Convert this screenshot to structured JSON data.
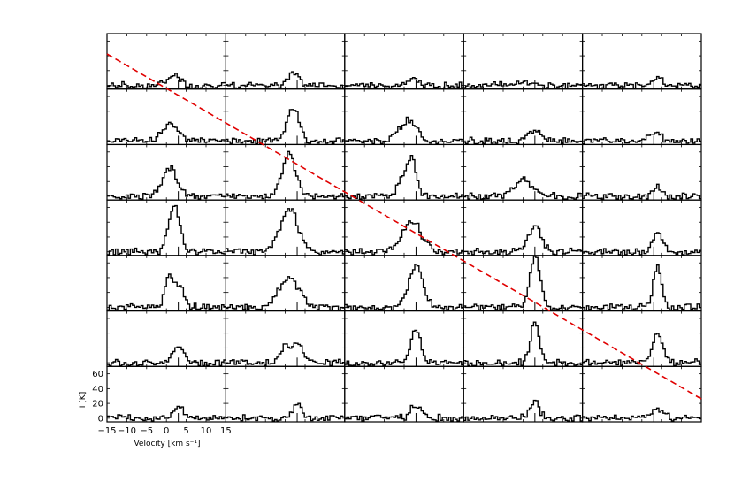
{
  "chart_data": {
    "type": "line",
    "layout": "grid of spectra",
    "rows": 7,
    "cols": 5,
    "xlabel": "Velocity [km s⁻¹]",
    "ylabel": "I [K]",
    "xlim": [
      -15,
      15
    ],
    "ylim": [
      -5,
      70
    ],
    "x_ticks": [
      -15,
      -10,
      -5,
      0,
      5,
      10,
      15
    ],
    "y_ticks": [
      0,
      20,
      40,
      60
    ],
    "colors": {
      "spectrum": "#000000",
      "guide_line": "#e00000"
    },
    "guide_line": {
      "style": "dashed",
      "from": "top-left",
      "to": "bottom-right"
    },
    "line_marker_velocity": 3,
    "panels": [
      {
        "row": 0,
        "col": 0,
        "peaks": [
          {
            "v": 2,
            "a": 14,
            "w": 1.6
          }
        ]
      },
      {
        "row": 0,
        "col": 1,
        "peaks": [
          {
            "v": 2,
            "a": 14,
            "w": 1.4
          }
        ]
      },
      {
        "row": 0,
        "col": 2,
        "peaks": [
          {
            "v": 2,
            "a": 8,
            "w": 1.5
          }
        ]
      },
      {
        "row": 0,
        "col": 3,
        "peaks": [
          {
            "v": 0,
            "a": 6,
            "w": 1.8
          }
        ]
      },
      {
        "row": 0,
        "col": 4,
        "peaks": [
          {
            "v": 4,
            "a": 12,
            "w": 1.0
          }
        ]
      },
      {
        "row": 1,
        "col": 0,
        "peaks": [
          {
            "v": 1,
            "a": 24,
            "w": 2.0
          }
        ]
      },
      {
        "row": 1,
        "col": 1,
        "peaks": [
          {
            "v": 2,
            "a": 46,
            "w": 1.4
          }
        ]
      },
      {
        "row": 1,
        "col": 2,
        "peaks": [
          {
            "v": 1,
            "a": 26,
            "w": 2.2
          }
        ]
      },
      {
        "row": 1,
        "col": 3,
        "peaks": [
          {
            "v": 3,
            "a": 14,
            "w": 1.5
          }
        ]
      },
      {
        "row": 1,
        "col": 4,
        "peaks": [
          {
            "v": 3,
            "a": 10,
            "w": 1.8
          }
        ]
      },
      {
        "row": 2,
        "col": 0,
        "peaks": [
          {
            "v": 1,
            "a": 38,
            "w": 1.8
          }
        ]
      },
      {
        "row": 2,
        "col": 1,
        "peaks": [
          {
            "v": 1,
            "a": 62,
            "w": 1.6
          }
        ]
      },
      {
        "row": 2,
        "col": 2,
        "peaks": [
          {
            "v": 2,
            "a": 42,
            "w": 1.2
          },
          {
            "v": 0,
            "a": 22,
            "w": 1.6
          }
        ]
      },
      {
        "row": 2,
        "col": 3,
        "peaks": [
          {
            "v": 0,
            "a": 22,
            "w": 2.2
          }
        ]
      },
      {
        "row": 2,
        "col": 4,
        "peaks": [
          {
            "v": 4,
            "a": 14,
            "w": 1.0
          }
        ]
      },
      {
        "row": 3,
        "col": 0,
        "peaks": [
          {
            "v": 2,
            "a": 62,
            "w": 1.4
          }
        ]
      },
      {
        "row": 3,
        "col": 1,
        "peaks": [
          {
            "v": 1,
            "a": 58,
            "w": 2.2
          }
        ]
      },
      {
        "row": 3,
        "col": 2,
        "peaks": [
          {
            "v": 2,
            "a": 40,
            "w": 2.4
          }
        ]
      },
      {
        "row": 3,
        "col": 3,
        "peaks": [
          {
            "v": 3,
            "a": 36,
            "w": 1.6
          }
        ]
      },
      {
        "row": 3,
        "col": 4,
        "peaks": [
          {
            "v": 4,
            "a": 24,
            "w": 1.4
          }
        ]
      },
      {
        "row": 4,
        "col": 0,
        "peaks": [
          {
            "v": 0.5,
            "a": 40,
            "w": 1.0
          },
          {
            "v": 3,
            "a": 30,
            "w": 1.2
          }
        ]
      },
      {
        "row": 4,
        "col": 1,
        "peaks": [
          {
            "v": 1,
            "a": 40,
            "w": 2.6
          }
        ]
      },
      {
        "row": 4,
        "col": 2,
        "peaks": [
          {
            "v": 3,
            "a": 54,
            "w": 1.8
          }
        ]
      },
      {
        "row": 4,
        "col": 3,
        "peaks": [
          {
            "v": 3,
            "a": 66,
            "w": 1.3
          }
        ]
      },
      {
        "row": 4,
        "col": 4,
        "peaks": [
          {
            "v": 4,
            "a": 54,
            "w": 1.1
          }
        ]
      },
      {
        "row": 5,
        "col": 0,
        "peaks": [
          {
            "v": 3,
            "a": 20,
            "w": 1.6
          }
        ]
      },
      {
        "row": 5,
        "col": 1,
        "peaks": [
          {
            "v": 0,
            "a": 22,
            "w": 1.0
          },
          {
            "v": 3,
            "a": 28,
            "w": 1.4
          }
        ]
      },
      {
        "row": 5,
        "col": 2,
        "peaks": [
          {
            "v": 3,
            "a": 46,
            "w": 1.2
          }
        ]
      },
      {
        "row": 5,
        "col": 3,
        "peaks": [
          {
            "v": 3,
            "a": 52,
            "w": 1.1
          }
        ]
      },
      {
        "row": 5,
        "col": 4,
        "peaks": [
          {
            "v": 4,
            "a": 38,
            "w": 1.2
          }
        ]
      },
      {
        "row": 6,
        "col": 0,
        "peaks": [
          {
            "v": 3,
            "a": 16,
            "w": 1.4
          }
        ]
      },
      {
        "row": 6,
        "col": 1,
        "peaks": [
          {
            "v": 3,
            "a": 20,
            "w": 1.2
          }
        ]
      },
      {
        "row": 6,
        "col": 2,
        "peaks": [
          {
            "v": 3,
            "a": 18,
            "w": 1.4
          }
        ]
      },
      {
        "row": 6,
        "col": 3,
        "peaks": [
          {
            "v": 3,
            "a": 20,
            "w": 1.2
          }
        ]
      },
      {
        "row": 6,
        "col": 4,
        "peaks": [
          {
            "v": 4,
            "a": 12,
            "w": 1.6
          }
        ]
      }
    ]
  }
}
